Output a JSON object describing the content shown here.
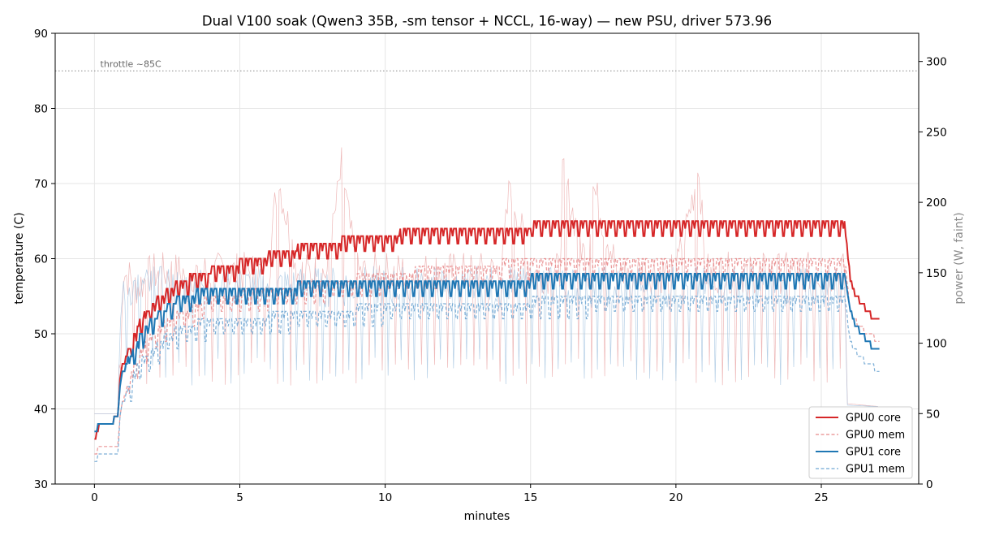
{
  "chart_data": {
    "type": "line",
    "title": "Dual V100 soak (Qwen3 35B, -sm tensor + NCCL, 16-way) — new PSU, driver 573.96",
    "xlabel": "minutes",
    "ylabel": "temperature (C)",
    "y2label": "power (W, faint)",
    "xlim": [
      -1.35,
      28.35
    ],
    "ylim": [
      30,
      90
    ],
    "y2lim": [
      0,
      320
    ],
    "x_ticks": [
      0,
      5,
      10,
      15,
      20,
      25
    ],
    "y_ticks": [
      30,
      40,
      50,
      60,
      70,
      80,
      90
    ],
    "y2_ticks": [
      0,
      50,
      100,
      150,
      200,
      250,
      300
    ],
    "grid": true,
    "legend_position": "lower-right",
    "annotations": [
      {
        "text": "throttle ~85C",
        "y": 85,
        "style": "dotted-line"
      }
    ],
    "series": [
      {
        "name": "GPU0 core",
        "axis": "temperature",
        "color": "#d62728",
        "style": "solid",
        "points": [
          [
            0,
            36
          ],
          [
            0.2,
            38
          ],
          [
            0.5,
            38
          ],
          [
            0.8,
            39
          ],
          [
            0.9,
            45
          ],
          [
            1.0,
            46
          ],
          [
            1.2,
            48
          ],
          [
            1.4,
            50
          ],
          [
            1.6,
            52
          ],
          [
            1.8,
            53
          ],
          [
            2.0,
            54
          ],
          [
            2.3,
            55
          ],
          [
            2.6,
            56
          ],
          [
            3.0,
            57
          ],
          [
            3.5,
            58
          ],
          [
            4.0,
            58.5
          ],
          [
            4.5,
            59
          ],
          [
            5.0,
            59.5
          ],
          [
            5.5,
            60
          ],
          [
            6.0,
            60.5
          ],
          [
            6.5,
            61
          ],
          [
            7.0,
            61.5
          ],
          [
            7.5,
            62
          ],
          [
            8.0,
            62
          ],
          [
            8.5,
            62.5
          ],
          [
            9.0,
            63
          ],
          [
            9.5,
            63
          ],
          [
            10.0,
            63
          ],
          [
            10.5,
            63.5
          ],
          [
            11.0,
            64
          ],
          [
            12.0,
            64
          ],
          [
            13.0,
            64
          ],
          [
            14.0,
            64
          ],
          [
            15.0,
            64.5
          ],
          [
            16.0,
            65
          ],
          [
            17.0,
            65
          ],
          [
            18.0,
            65
          ],
          [
            19.0,
            65
          ],
          [
            20.0,
            65
          ],
          [
            21.0,
            65
          ],
          [
            22.0,
            65
          ],
          [
            23.0,
            65
          ],
          [
            24.0,
            65
          ],
          [
            25.0,
            65
          ],
          [
            25.8,
            65
          ],
          [
            26.0,
            57
          ],
          [
            26.2,
            55
          ],
          [
            26.4,
            54
          ],
          [
            26.6,
            53
          ],
          [
            26.8,
            52
          ],
          [
            27.0,
            52
          ]
        ]
      },
      {
        "name": "GPU0 mem",
        "axis": "temperature",
        "color": "#e88a8b",
        "style": "dashed",
        "points": [
          [
            0,
            34
          ],
          [
            0.2,
            35
          ],
          [
            0.8,
            35
          ],
          [
            0.9,
            40
          ],
          [
            1.0,
            41
          ],
          [
            1.2,
            44
          ],
          [
            1.5,
            47
          ],
          [
            2.0,
            50
          ],
          [
            2.5,
            52
          ],
          [
            3.0,
            53
          ],
          [
            3.5,
            54
          ],
          [
            4.0,
            55
          ],
          [
            4.5,
            55
          ],
          [
            5.0,
            55.5
          ],
          [
            6.0,
            56
          ],
          [
            7.0,
            56.5
          ],
          [
            8.0,
            57
          ],
          [
            9.0,
            57.5
          ],
          [
            10.0,
            58
          ],
          [
            11.0,
            58.5
          ],
          [
            12.0,
            59
          ],
          [
            13.0,
            59
          ],
          [
            14.0,
            59.5
          ],
          [
            15.0,
            60
          ],
          [
            16.0,
            60
          ],
          [
            18.0,
            60
          ],
          [
            20.0,
            60
          ],
          [
            22.0,
            60
          ],
          [
            24.0,
            60
          ],
          [
            25.8,
            60
          ],
          [
            26.0,
            53
          ],
          [
            26.3,
            51
          ],
          [
            26.6,
            50
          ],
          [
            27.0,
            49
          ]
        ]
      },
      {
        "name": "GPU1 core",
        "axis": "temperature",
        "color": "#1f77b4",
        "style": "solid",
        "points": [
          [
            0,
            37
          ],
          [
            0.2,
            38
          ],
          [
            0.5,
            38
          ],
          [
            0.8,
            39
          ],
          [
            0.9,
            44
          ],
          [
            1.0,
            45
          ],
          [
            1.2,
            47
          ],
          [
            1.4,
            48
          ],
          [
            1.6,
            50
          ],
          [
            1.8,
            51
          ],
          [
            2.0,
            52
          ],
          [
            2.3,
            53
          ],
          [
            2.6,
            54
          ],
          [
            3.0,
            55
          ],
          [
            3.5,
            55.5
          ],
          [
            4.0,
            56
          ],
          [
            5.0,
            56
          ],
          [
            6.0,
            56
          ],
          [
            7.0,
            56.5
          ],
          [
            8.0,
            57
          ],
          [
            9.0,
            57
          ],
          [
            10.0,
            57
          ],
          [
            11.0,
            57
          ],
          [
            12.0,
            57
          ],
          [
            13.0,
            57
          ],
          [
            14.0,
            57
          ],
          [
            15.0,
            57.5
          ],
          [
            16.0,
            57.5
          ],
          [
            17.0,
            58
          ],
          [
            18.0,
            58
          ],
          [
            19.0,
            58
          ],
          [
            20.0,
            58
          ],
          [
            21.0,
            58
          ],
          [
            22.0,
            58
          ],
          [
            23.0,
            58
          ],
          [
            24.0,
            58
          ],
          [
            25.0,
            58
          ],
          [
            25.8,
            58
          ],
          [
            26.0,
            53
          ],
          [
            26.2,
            51
          ],
          [
            26.4,
            50
          ],
          [
            26.6,
            49
          ],
          [
            26.8,
            48
          ],
          [
            27.0,
            48
          ]
        ]
      },
      {
        "name": "GPU1 mem",
        "axis": "temperature",
        "color": "#6fa6d3",
        "style": "dashed",
        "points": [
          [
            0,
            33
          ],
          [
            0.2,
            34
          ],
          [
            0.8,
            34
          ],
          [
            0.9,
            40
          ],
          [
            1.0,
            41
          ],
          [
            1.2,
            43
          ],
          [
            1.5,
            46
          ],
          [
            2.0,
            48
          ],
          [
            2.5,
            50
          ],
          [
            3.0,
            51
          ],
          [
            3.5,
            51.5
          ],
          [
            4.0,
            52
          ],
          [
            5.0,
            52
          ],
          [
            6.0,
            52.5
          ],
          [
            7.0,
            53
          ],
          [
            8.0,
            53
          ],
          [
            9.0,
            53.5
          ],
          [
            10.0,
            54
          ],
          [
            11.0,
            54
          ],
          [
            12.0,
            54
          ],
          [
            13.0,
            54
          ],
          [
            14.0,
            54
          ],
          [
            15.0,
            54.5
          ],
          [
            16.0,
            54.5
          ],
          [
            17.0,
            55
          ],
          [
            18.0,
            55
          ],
          [
            19.0,
            55
          ],
          [
            20.0,
            55
          ],
          [
            21.0,
            55
          ],
          [
            22.0,
            55
          ],
          [
            23.0,
            55
          ],
          [
            24.0,
            55
          ],
          [
            25.0,
            55
          ],
          [
            25.8,
            55
          ],
          [
            26.0,
            49
          ],
          [
            26.3,
            47
          ],
          [
            26.6,
            46
          ],
          [
            27.0,
            45
          ]
        ]
      },
      {
        "name": "",
        "axis": "power",
        "color": "#e8a0a0",
        "style": "faint",
        "points": [
          [
            0,
            50
          ],
          [
            0.8,
            50
          ],
          [
            0.9,
            120
          ],
          [
            1.0,
            150
          ],
          [
            1.5,
            140
          ],
          [
            2,
            150
          ],
          [
            3,
            150
          ],
          [
            4,
            150
          ],
          [
            5,
            150
          ],
          [
            6,
            150
          ],
          [
            6.3,
            220
          ],
          [
            7,
            150
          ],
          [
            8,
            150
          ],
          [
            8.5,
            225
          ],
          [
            9,
            150
          ],
          [
            10,
            150
          ],
          [
            11,
            150
          ],
          [
            12,
            150
          ],
          [
            13,
            150
          ],
          [
            14,
            150
          ],
          [
            14.3,
            215
          ],
          [
            15,
            150
          ],
          [
            16,
            150
          ],
          [
            16.1,
            220
          ],
          [
            17,
            150
          ],
          [
            17.1,
            215
          ],
          [
            18,
            150
          ],
          [
            19,
            150
          ],
          [
            20,
            150
          ],
          [
            20.8,
            225
          ],
          [
            21,
            150
          ],
          [
            22,
            150
          ],
          [
            23,
            150
          ],
          [
            24,
            150
          ],
          [
            25,
            150
          ],
          [
            25.8,
            150
          ],
          [
            25.9,
            57
          ],
          [
            27,
            55
          ]
        ]
      },
      {
        "name": "",
        "axis": "power",
        "color": "#9cbfdd",
        "style": "faint",
        "points": [
          [
            0,
            50
          ],
          [
            0.8,
            50
          ],
          [
            0.9,
            120
          ],
          [
            1.0,
            140
          ],
          [
            2,
            140
          ],
          [
            3,
            140
          ],
          [
            4,
            140
          ],
          [
            5,
            140
          ],
          [
            6,
            140
          ],
          [
            7,
            140
          ],
          [
            8,
            140
          ],
          [
            9,
            140
          ],
          [
            10,
            140
          ],
          [
            11,
            140
          ],
          [
            12,
            140
          ],
          [
            13,
            140
          ],
          [
            14,
            140
          ],
          [
            15,
            140
          ],
          [
            16,
            140
          ],
          [
            17,
            140
          ],
          [
            18,
            140
          ],
          [
            19,
            140
          ],
          [
            20,
            140
          ],
          [
            21,
            140
          ],
          [
            22,
            140
          ],
          [
            23,
            140
          ],
          [
            24,
            140
          ],
          [
            25,
            140
          ],
          [
            25.8,
            140
          ],
          [
            25.9,
            56
          ],
          [
            27,
            55
          ]
        ]
      }
    ]
  }
}
